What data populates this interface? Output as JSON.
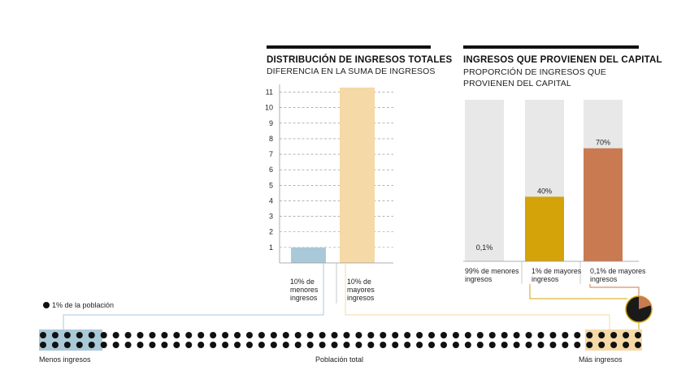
{
  "chart_data": [
    {
      "type": "bar",
      "title": "DISTRIBUCIÓN DE INGRESOS TOTALES",
      "subtitle": "DIFERENCIA EN LA SUMA DE INGRESOS",
      "y_ticks": [
        1,
        2,
        3,
        4,
        5,
        6,
        7,
        8,
        9,
        10,
        11
      ],
      "ylim": [
        0,
        11.5
      ],
      "grid": true,
      "categories": [
        {
          "line1": "10% de",
          "line2": "menores",
          "line3": "ingresos"
        },
        {
          "line1": "10% de",
          "line2": "mayores",
          "line3": "ingresos"
        }
      ],
      "values": [
        1,
        11.3
      ],
      "colors": [
        "#a9c9d9",
        "#f5d9a6"
      ]
    },
    {
      "type": "bar",
      "subtype": "stacked-100",
      "title": "INGRESOS QUE PROVIENEN DEL CAPITAL",
      "subtitle_line1": "PROPORCIÓN DE INGRESOS QUE",
      "subtitle_line2": "PROVIENEN DEL CAPITAL",
      "categories": [
        {
          "line1": "99% de menores",
          "line2": "ingresos"
        },
        {
          "line1": "1% de mayores",
          "line2": "ingresos"
        },
        {
          "line1": "0,1% de mayores",
          "line2": "ingresos"
        }
      ],
      "values": [
        0.1,
        40,
        70
      ],
      "value_labels": [
        "0,1%",
        "40%",
        "70%"
      ],
      "ylim": [
        0,
        100
      ],
      "colors": [
        "#e8e8e8",
        "#d4a30a",
        "#c97a50"
      ],
      "background_color": "#e8e8e8"
    }
  ],
  "population": {
    "legend": "1% de la población",
    "dot_count": 100,
    "rows": 2,
    "low_label": "Menos ingresos",
    "mid_label": "Población total",
    "high_label": "Más ingresos",
    "low_highlight_color": "#a9c9d9",
    "high_highlight_color": "#f5d9a6",
    "dot_color": "#111111"
  },
  "connector_colors": {
    "low": "#a9c9d9",
    "high": "#f5d9a6",
    "capital": "#d4a30a",
    "capital_top": "#c97a50"
  }
}
